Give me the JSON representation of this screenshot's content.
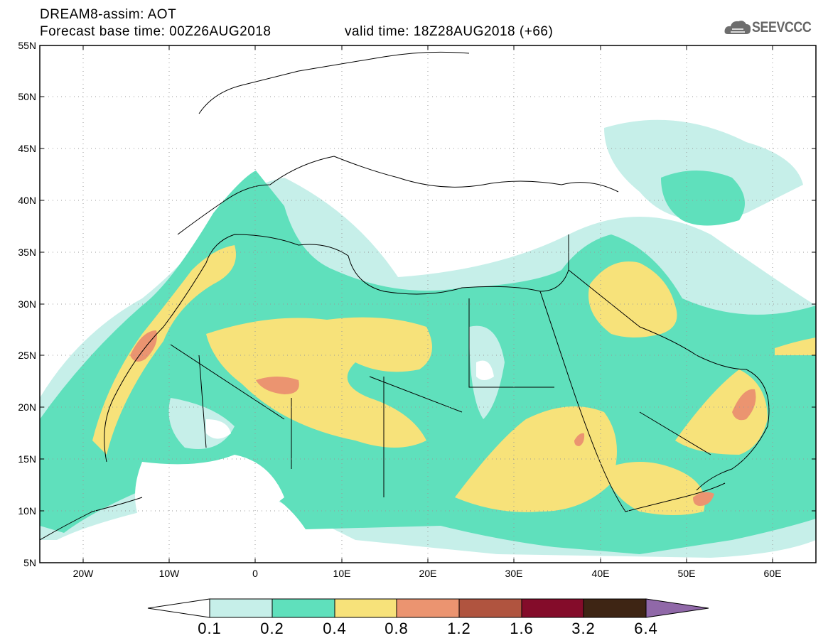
{
  "title": {
    "line1": "DREAM8-assim: AOT",
    "line2": "Forecast base time: 00Z26AUG2018",
    "valid": "valid time: 18Z28AUG2018 (+66)"
  },
  "logo": {
    "text": "SEEVCCC",
    "icon": "cloud-icon"
  },
  "map": {
    "lat_labels": [
      "55N",
      "50N",
      "45N",
      "40N",
      "35N",
      "30N",
      "25N",
      "20N",
      "15N",
      "10N",
      "5N"
    ],
    "lon_labels": [
      "20W",
      "10W",
      "0",
      "10E",
      "20E",
      "30E",
      "40E",
      "50E",
      "60E"
    ],
    "lat_range": [
      5,
      55
    ],
    "lon_range": [
      -25,
      65
    ],
    "grid": true
  },
  "colorbar": {
    "levels": [
      "0.1",
      "0.2",
      "0.4",
      "0.8",
      "1.2",
      "1.6",
      "3.2",
      "6.4"
    ],
    "colors": [
      "#ffffff",
      "#c6efe9",
      "#5fe0bc",
      "#f7e27a",
      "#eb9470",
      "#b0543f",
      "#840c2a",
      "#3e2514",
      "#9068a8"
    ]
  }
}
